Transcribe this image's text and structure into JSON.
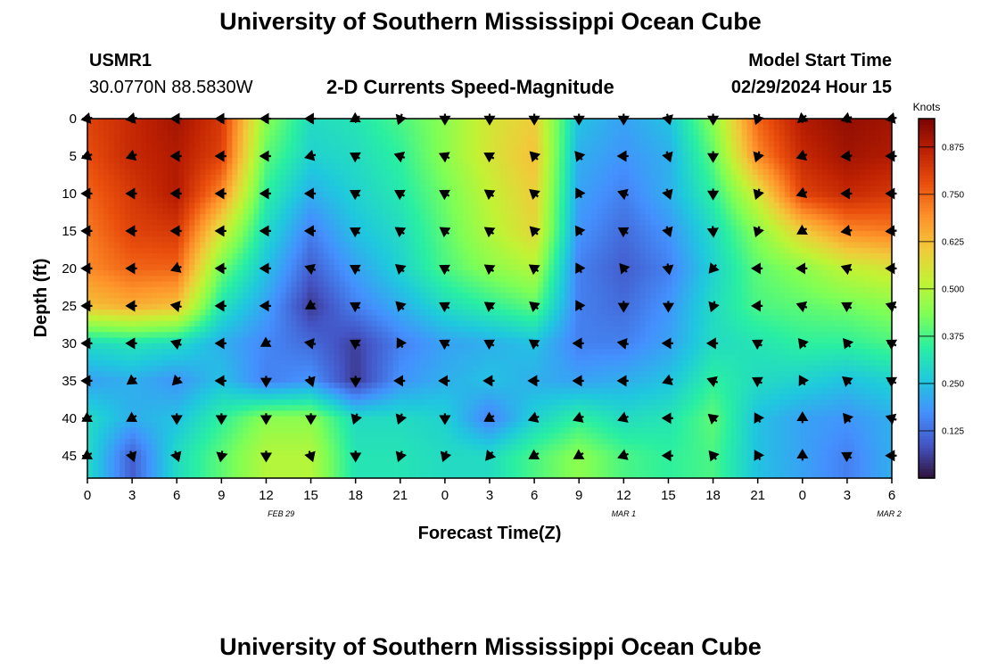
{
  "header": {
    "title": "University of Southern Mississippi Ocean Cube",
    "station_id": "USMR1",
    "coords": "30.0770N  88.5830W",
    "subtitle": "2-D Currents Speed-Magnitude",
    "model_start_label": "Model Start Time",
    "model_start_value": "02/29/2024 Hour 15",
    "footer_title": "University of Southern Mississippi Ocean Cube"
  },
  "chart_data": {
    "type": "heatmap",
    "xlabel": "Forecast Time(Z)",
    "ylabel": "Depth (ft)",
    "x_ticks": [
      "0",
      "3",
      "6",
      "9",
      "12",
      "15",
      "18",
      "21",
      "0",
      "3",
      "6",
      "9",
      "12",
      "15",
      "18",
      "21",
      "0",
      "3",
      "6"
    ],
    "y_ticks": [
      "0",
      "5",
      "10",
      "15",
      "20",
      "25",
      "30",
      "35",
      "40",
      "45"
    ],
    "date_labels": [
      "FEB 29",
      "MAR 1",
      "MAR 2"
    ],
    "colorbar": {
      "title": "Knots",
      "ticks": [
        "0.875",
        "0.750",
        "0.625",
        "0.500",
        "0.375",
        "0.250",
        "0.125"
      ],
      "range": [
        0.0,
        0.95
      ],
      "colors": [
        "#30123b",
        "#4454c4",
        "#4490fe",
        "#1fc8de",
        "#29efa2",
        "#7dff56",
        "#c1f334",
        "#f1ca3a",
        "#fe922a",
        "#ea4f0d",
        "#be2102",
        "#7a0403"
      ]
    },
    "time_hours": [
      0,
      3,
      6,
      9,
      12,
      15,
      18,
      21,
      24,
      27,
      30,
      33,
      36,
      39,
      42,
      45,
      48,
      51,
      54
    ],
    "arrow_depths_ft": [
      0,
      5,
      10,
      15,
      20,
      25,
      30,
      35,
      40,
      45
    ],
    "speed_knots": [
      [
        0.8,
        0.85,
        0.9,
        0.82,
        0.45,
        0.3,
        0.32,
        0.38,
        0.45,
        0.55,
        0.6,
        0.25,
        0.2,
        0.25,
        0.45,
        0.75,
        0.88,
        0.92,
        0.9
      ],
      [
        0.78,
        0.85,
        0.88,
        0.8,
        0.4,
        0.28,
        0.3,
        0.35,
        0.45,
        0.55,
        0.62,
        0.22,
        0.18,
        0.22,
        0.4,
        0.7,
        0.85,
        0.9,
        0.88
      ],
      [
        0.75,
        0.82,
        0.88,
        0.7,
        0.35,
        0.22,
        0.28,
        0.33,
        0.42,
        0.52,
        0.6,
        0.2,
        0.15,
        0.22,
        0.35,
        0.55,
        0.8,
        0.85,
        0.82
      ],
      [
        0.72,
        0.8,
        0.82,
        0.55,
        0.3,
        0.15,
        0.25,
        0.3,
        0.4,
        0.5,
        0.58,
        0.18,
        0.12,
        0.18,
        0.3,
        0.45,
        0.6,
        0.7,
        0.72
      ],
      [
        0.7,
        0.75,
        0.75,
        0.42,
        0.25,
        0.1,
        0.2,
        0.28,
        0.38,
        0.45,
        0.5,
        0.15,
        0.1,
        0.15,
        0.28,
        0.4,
        0.45,
        0.52,
        0.55
      ],
      [
        0.62,
        0.65,
        0.62,
        0.32,
        0.2,
        0.05,
        0.15,
        0.22,
        0.3,
        0.35,
        0.4,
        0.15,
        0.12,
        0.18,
        0.3,
        0.38,
        0.4,
        0.42,
        0.45
      ],
      [
        0.3,
        0.32,
        0.3,
        0.22,
        0.16,
        0.12,
        0.06,
        0.15,
        0.2,
        0.22,
        0.25,
        0.15,
        0.15,
        0.2,
        0.3,
        0.32,
        0.35,
        0.35,
        0.38
      ],
      [
        0.2,
        0.22,
        0.18,
        0.25,
        0.15,
        0.18,
        0.05,
        0.18,
        0.22,
        0.25,
        0.22,
        0.2,
        0.22,
        0.25,
        0.35,
        0.3,
        0.28,
        0.25,
        0.28
      ],
      [
        0.3,
        0.22,
        0.25,
        0.35,
        0.45,
        0.45,
        0.3,
        0.3,
        0.28,
        0.15,
        0.28,
        0.35,
        0.3,
        0.32,
        0.4,
        0.25,
        0.2,
        0.18,
        0.22
      ],
      [
        0.3,
        0.1,
        0.3,
        0.4,
        0.5,
        0.5,
        0.32,
        0.32,
        0.3,
        0.3,
        0.38,
        0.45,
        0.38,
        0.35,
        0.38,
        0.25,
        0.2,
        0.15,
        0.22
      ]
    ],
    "direction_deg": [
      [
        260,
        260,
        270,
        270,
        270,
        270,
        240,
        200,
        180,
        180,
        180,
        180,
        180,
        165,
        180,
        200,
        230,
        250,
        260
      ],
      [
        250,
        250,
        270,
        270,
        270,
        255,
        300,
        290,
        295,
        300,
        315,
        320,
        270,
        160,
        180,
        200,
        250,
        265,
        270
      ],
      [
        270,
        270,
        270,
        270,
        270,
        270,
        300,
        300,
        300,
        305,
        310,
        330,
        290,
        160,
        180,
        200,
        250,
        270,
        270
      ],
      [
        270,
        270,
        270,
        270,
        270,
        270,
        300,
        305,
        305,
        305,
        315,
        325,
        300,
        160,
        175,
        200,
        240,
        260,
        265
      ],
      [
        270,
        270,
        250,
        270,
        270,
        290,
        300,
        310,
        300,
        305,
        305,
        330,
        320,
        170,
        220,
        270,
        270,
        290,
        270
      ],
      [
        270,
        270,
        280,
        270,
        270,
        240,
        300,
        315,
        300,
        305,
        310,
        330,
        180,
        180,
        200,
        270,
        290,
        300,
        290
      ],
      [
        270,
        270,
        290,
        270,
        240,
        280,
        300,
        330,
        300,
        300,
        305,
        270,
        280,
        270,
        270,
        300,
        320,
        320,
        300
      ],
      [
        270,
        235,
        225,
        270,
        180,
        160,
        180,
        270,
        270,
        270,
        270,
        270,
        270,
        250,
        290,
        300,
        330,
        310,
        300
      ],
      [
        240,
        240,
        180,
        180,
        180,
        180,
        200,
        200,
        180,
        240,
        250,
        250,
        250,
        270,
        310,
        330,
        0,
        320,
        290
      ],
      [
        240,
        160,
        160,
        190,
        180,
        160,
        180,
        200,
        200,
        220,
        240,
        240,
        250,
        270,
        320,
        330,
        0,
        300,
        270
      ]
    ]
  }
}
